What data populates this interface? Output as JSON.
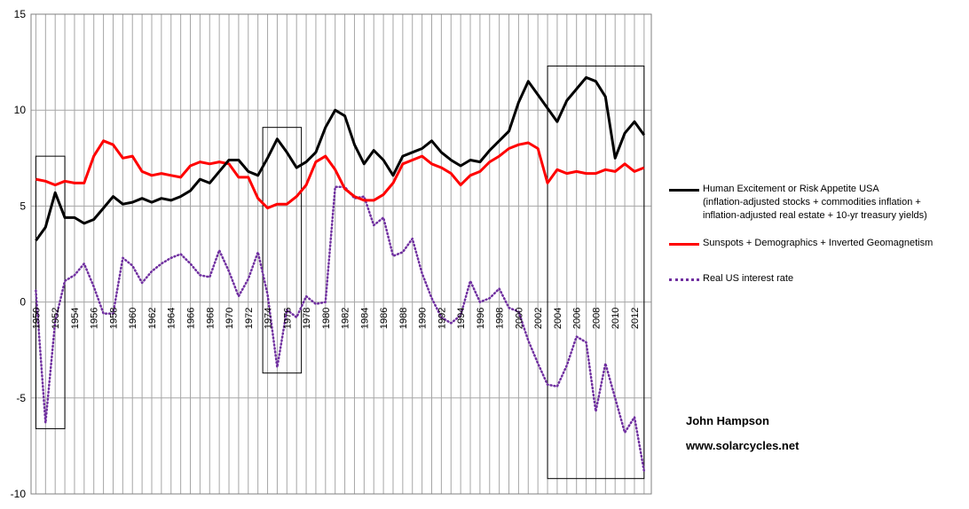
{
  "chart_data": {
    "type": "line",
    "x": [
      1950,
      1951,
      1952,
      1953,
      1954,
      1955,
      1956,
      1957,
      1958,
      1959,
      1960,
      1961,
      1962,
      1963,
      1964,
      1965,
      1966,
      1967,
      1968,
      1969,
      1970,
      1971,
      1972,
      1973,
      1974,
      1975,
      1976,
      1977,
      1978,
      1979,
      1980,
      1981,
      1982,
      1983,
      1984,
      1985,
      1986,
      1987,
      1988,
      1989,
      1990,
      1991,
      1992,
      1993,
      1994,
      1995,
      1996,
      1997,
      1998,
      1999,
      2000,
      2001,
      2002,
      2003,
      2004,
      2005,
      2006,
      2007,
      2008,
      2009,
      2010,
      2011,
      2012,
      2013
    ],
    "x_tick_labels": [
      "1950",
      "1952",
      "1954",
      "1956",
      "1958",
      "1960",
      "1962",
      "1964",
      "1966",
      "1968",
      "1970",
      "1972",
      "1974",
      "1976",
      "1978",
      "1980",
      "1982",
      "1984",
      "1986",
      "1988",
      "1990",
      "1992",
      "1994",
      "1996",
      "1998",
      "2000",
      "2002",
      "2004",
      "2006",
      "2008",
      "2010",
      "2012"
    ],
    "y_tick_labels": [
      "15",
      "10",
      "5",
      "0",
      "-5",
      "-10"
    ],
    "ylim": [
      -10,
      15
    ],
    "grid": true,
    "legend_position": "right",
    "series": [
      {
        "name": "Human Excitement or Risk Appetite USA\n(inflation-adjusted stocks + commodities inflation +\ninflation-adjusted real estate + 10-yr treasury yields)",
        "color": "#000000",
        "style": "solid",
        "values": [
          3.2,
          3.9,
          5.7,
          4.4,
          4.4,
          4.1,
          4.3,
          4.9,
          5.5,
          5.1,
          5.2,
          5.4,
          5.2,
          5.4,
          5.3,
          5.5,
          5.8,
          6.4,
          6.2,
          6.8,
          7.4,
          7.4,
          6.8,
          6.6,
          7.5,
          8.5,
          7.8,
          7.0,
          7.3,
          7.8,
          9.1,
          10.0,
          9.7,
          8.2,
          7.2,
          7.9,
          7.4,
          6.6,
          7.6,
          7.8,
          8.0,
          8.4,
          7.8,
          7.4,
          7.1,
          7.4,
          7.3,
          7.9,
          8.4,
          8.9,
          10.4,
          11.5,
          10.8,
          10.1,
          9.4,
          10.5,
          11.1,
          11.7,
          11.5,
          10.7,
          7.5,
          8.8,
          9.4,
          8.7
        ]
      },
      {
        "name": "Sunspots + Demographics + Inverted Geomagnetism",
        "color": "#ff0000",
        "style": "solid",
        "values": [
          6.4,
          6.3,
          6.1,
          6.3,
          6.2,
          6.2,
          7.6,
          8.4,
          8.2,
          7.5,
          7.6,
          6.8,
          6.6,
          6.7,
          6.6,
          6.5,
          7.1,
          7.3,
          7.2,
          7.3,
          7.2,
          6.5,
          6.5,
          5.4,
          4.9,
          5.1,
          5.1,
          5.5,
          6.1,
          7.3,
          7.6,
          6.9,
          5.9,
          5.5,
          5.3,
          5.3,
          5.6,
          6.2,
          7.2,
          7.4,
          7.6,
          7.2,
          7.0,
          6.7,
          6.1,
          6.6,
          6.8,
          7.3,
          7.6,
          8.0,
          8.2,
          8.3,
          8.0,
          6.2,
          6.9,
          6.7,
          6.8,
          6.7,
          6.7,
          6.9,
          6.8,
          7.2,
          6.8,
          7.0
        ]
      },
      {
        "name": "Real US interest rate",
        "color": "#7030a0",
        "style": "dotted",
        "values": [
          0.6,
          -6.3,
          -1.0,
          1.1,
          1.4,
          2.0,
          0.8,
          -0.6,
          -0.6,
          2.3,
          1.9,
          1.0,
          1.6,
          2.0,
          2.3,
          2.5,
          2.0,
          1.4,
          1.3,
          2.7,
          1.6,
          0.3,
          1.2,
          2.6,
          0.4,
          -3.4,
          -0.4,
          -0.8,
          0.3,
          -0.1,
          0.0,
          6.0,
          6.0,
          5.4,
          5.5,
          4.0,
          4.4,
          2.4,
          2.6,
          3.3,
          1.5,
          0.2,
          -0.8,
          -1.1,
          -0.7,
          1.1,
          0.0,
          0.2,
          0.7,
          -0.3,
          -0.5,
          -2.0,
          -3.2,
          -4.3,
          -4.4,
          -3.3,
          -1.8,
          -2.1,
          -5.7,
          -3.2,
          -5.0,
          -6.8,
          -6.0,
          -8.8
        ]
      }
    ],
    "annotation_boxes": [
      {
        "x_from": 1950,
        "x_to": 1953,
        "y_from": -6.6,
        "y_to": 7.6
      },
      {
        "x_from": 1973.5,
        "x_to": 1977.5,
        "y_from": -3.7,
        "y_to": 9.1
      },
      {
        "x_from": 2003,
        "x_to": 2013,
        "y_from": -9.2,
        "y_to": 12.3
      }
    ]
  },
  "credit": {
    "author": "John Hampson",
    "website": "www.solarcycles.net"
  }
}
